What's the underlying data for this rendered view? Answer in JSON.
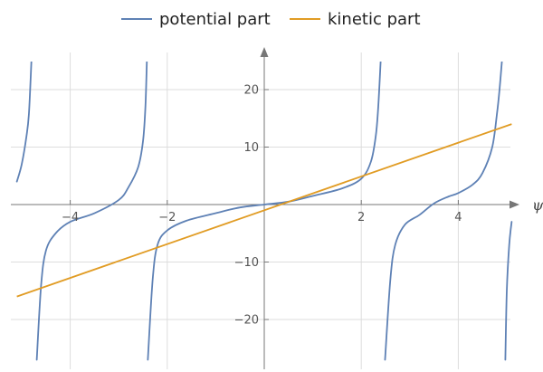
{
  "chart_data": {
    "type": "line",
    "title": "",
    "xlabel": "ψ",
    "ylabel": "",
    "xlim": [
      -5.2,
      5.2
    ],
    "ylim": [
      -28,
      25
    ],
    "grid": true,
    "legend_position": "top-center",
    "x_ticks": [
      -4,
      -2,
      2,
      4
    ],
    "y_ticks": [
      -20,
      -10,
      10,
      20
    ],
    "x_tick_labels": [
      "−4",
      "−2",
      "2",
      "4"
    ],
    "y_tick_labels": [
      "−20",
      "−10",
      "10",
      "20"
    ],
    "colors": {
      "potential": "#5e81b5",
      "kinetic": "#e19c24",
      "grid": "#dddddd",
      "axis": "#777777"
    },
    "series": [
      {
        "name": "potential part",
        "color": "#5e81b5",
        "branches": [
          {
            "x": [
              -5.1,
              -5.0,
              -4.9,
              -4.85,
              -4.8
            ],
            "y": [
              4,
              7,
              12,
              16,
              25
            ]
          },
          {
            "x": [
              -4.69,
              -4.6,
              -4.5,
              -4.3,
              -4.0,
              -3.5,
              -3.0,
              -2.8,
              -2.6,
              -2.5,
              -2.45,
              -2.42
            ],
            "y": [
              -27,
              -14,
              -8,
              -5,
              -3,
              -1.5,
              0.8,
              3,
              6.5,
              11,
              17,
              25
            ]
          },
          {
            "x": [
              -2.4,
              -2.3,
              -2.2,
              -2.0,
              -1.6,
              -1.0,
              -0.5,
              0,
              0.5,
              1.0,
              1.6,
              2.0,
              2.2,
              2.3,
              2.35,
              2.4
            ],
            "y": [
              -27,
              -13,
              -7,
              -4.5,
              -2.8,
              -1.5,
              -0.5,
              0,
              0.5,
              1.5,
              2.8,
              4.5,
              7.5,
              12,
              17,
              25
            ]
          },
          {
            "x": [
              2.49,
              2.6,
              2.7,
              2.9,
              3.2,
              3.5,
              3.8,
              4.0,
              4.3,
              4.5,
              4.7,
              4.8,
              4.85,
              4.9
            ],
            "y": [
              -27,
              -13,
              -7,
              -3.5,
              -1.8,
              0.2,
              1.4,
              2,
              3.5,
              5.5,
              10,
              16,
              20,
              25
            ]
          },
          {
            "x": [
              4.97,
              5.0,
              5.05,
              5.1
            ],
            "y": [
              -27,
              -15,
              -7,
              -3
            ]
          }
        ]
      },
      {
        "name": "kinetic part",
        "color": "#e19c24",
        "x": [
          -5.1,
          5.1
        ],
        "y": [
          -16,
          14
        ]
      }
    ]
  }
}
